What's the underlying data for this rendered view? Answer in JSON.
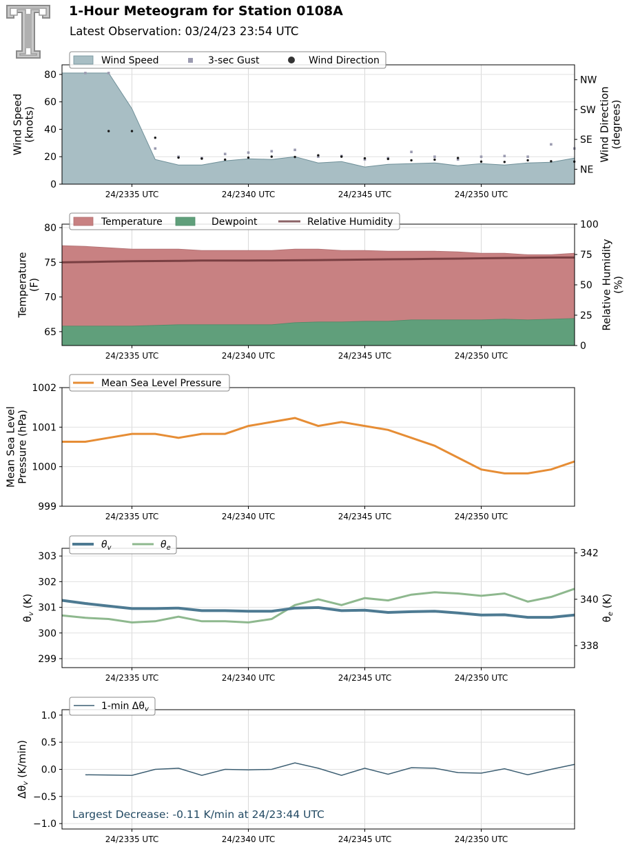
{
  "header": {
    "title": "1-Hour Meteogram for Station 0108A",
    "subtitle": "Latest Observation: 03/24/23 23:54 UTC",
    "logo": "texas-tech-double-t-logo"
  },
  "colors": {
    "wind_fill": "#a8bec4",
    "wind_edge": "#6e8f98",
    "gust": "#9b9bb0",
    "wdir": "#1a1a1a",
    "temperature": "#c88182",
    "dewpoint": "#609f7b",
    "rh": "#6b3437",
    "mslp": "#e68d35",
    "theta_v": "#4d7a92",
    "theta_e": "#8eb88e",
    "delta": "#3c5e72",
    "annotation": "#234a63"
  },
  "chart_data": [
    {
      "type": "area",
      "name": "wind",
      "x_tick_labels": [
        "24/2335 UTC",
        "24/2340 UTC",
        "24/2345 UTC",
        "24/2350 UTC"
      ],
      "x_minutes": [
        32,
        33,
        34,
        35,
        36,
        37,
        38,
        39,
        40,
        41,
        42,
        43,
        44,
        45,
        46,
        47,
        48,
        49,
        50,
        51,
        52,
        53,
        54
      ],
      "ylabel": "Wind Speed\n(knots)",
      "y2label": "Wind Direction\n(degrees)",
      "ylim": [
        0,
        87
      ],
      "yticks": [
        0,
        20,
        40,
        60,
        80
      ],
      "y2_tick_labels": [
        "NE",
        "SE",
        "SW",
        "NW"
      ],
      "y2_tick_values": [
        45,
        135,
        225,
        315
      ],
      "y2lim": [
        0,
        360
      ],
      "legend": [
        "Wind Speed",
        "3-sec Gust",
        "Wind Direction"
      ],
      "series": [
        {
          "name": "Wind Speed",
          "values": [
            81,
            81,
            81,
            55,
            18,
            14,
            14,
            17,
            18.5,
            18,
            20,
            15.5,
            16.5,
            12.5,
            14.5,
            15,
            15.5,
            13.5,
            15,
            14,
            15.5,
            16,
            19
          ]
        },
        {
          "name": "3-sec Gust",
          "values": [
            null,
            81,
            81,
            null,
            26,
            20,
            19,
            22,
            23,
            24,
            25,
            20,
            20.5,
            18,
            19,
            23.5,
            20,
            18,
            20,
            20.5,
            20,
            29,
            26
          ]
        },
        {
          "name": "Wind Direction",
          "values": [
            null,
            null,
            160,
            160,
            140,
            80,
            77,
            74,
            80,
            83,
            82,
            87,
            83,
            78,
            76,
            72,
            74,
            79,
            68,
            67,
            72,
            69,
            68
          ]
        }
      ],
      "grid": true,
      "legend_position": "top-left"
    },
    {
      "type": "area",
      "name": "temperature",
      "x_tick_labels": [
        "24/2335 UTC",
        "24/2340 UTC",
        "24/2345 UTC",
        "24/2350 UTC"
      ],
      "x_minutes": [
        32,
        33,
        34,
        35,
        36,
        37,
        38,
        39,
        40,
        41,
        42,
        43,
        44,
        45,
        46,
        47,
        48,
        49,
        50,
        51,
        52,
        53,
        54
      ],
      "ylabel": "Temperature\n(F)",
      "y2label": "Relative Humidity\n(%)",
      "ylim": [
        63,
        80.5
      ],
      "yticks": [
        65,
        70,
        75,
        80
      ],
      "y2lim": [
        0,
        100
      ],
      "y2ticks": [
        0,
        25,
        50,
        75,
        100
      ],
      "legend": [
        "Temperature",
        "Dewpoint",
        "Relative Humidity"
      ],
      "series": [
        {
          "name": "Temperature",
          "values": [
            77.4,
            77.3,
            77.1,
            76.9,
            76.9,
            76.9,
            76.7,
            76.7,
            76.7,
            76.7,
            76.9,
            76.9,
            76.7,
            76.7,
            76.6,
            76.6,
            76.6,
            76.5,
            76.3,
            76.3,
            76.1,
            76.1,
            76.3
          ]
        },
        {
          "name": "Dewpoint",
          "values": [
            65.8,
            65.8,
            65.8,
            65.8,
            65.9,
            66.0,
            66.0,
            66.0,
            66.0,
            66.0,
            66.3,
            66.4,
            66.4,
            66.5,
            66.5,
            66.7,
            66.7,
            66.7,
            66.7,
            66.8,
            66.7,
            66.8,
            66.9
          ]
        },
        {
          "name": "Relative Humidity",
          "values": [
            68.5,
            68.8,
            69.2,
            69.5,
            69.6,
            69.8,
            70.0,
            70.0,
            70.0,
            70.1,
            70.2,
            70.4,
            70.6,
            70.8,
            71.0,
            71.2,
            71.4,
            71.6,
            71.9,
            72.1,
            72.3,
            72.5,
            72.5
          ]
        }
      ],
      "grid": true,
      "legend_position": "top-left"
    },
    {
      "type": "line",
      "name": "pressure",
      "x_tick_labels": [
        "24/2335 UTC",
        "24/2340 UTC",
        "24/2345 UTC",
        "24/2350 UTC"
      ],
      "x_minutes": [
        32,
        33,
        34,
        35,
        36,
        37,
        38,
        39,
        40,
        41,
        42,
        43,
        44,
        45,
        46,
        47,
        48,
        49,
        50,
        51,
        52,
        53,
        54
      ],
      "ylabel": "Mean Sea Level\nPressure (hPa)",
      "ylim": [
        999,
        1002
      ],
      "yticks": [
        999,
        1000,
        1001,
        1002
      ],
      "legend": [
        "Mean Sea Level Pressure"
      ],
      "series": [
        {
          "name": "Mean Sea Level Pressure",
          "values": [
            1000.63,
            1000.63,
            1000.73,
            1000.83,
            1000.83,
            1000.73,
            1000.83,
            1000.83,
            1001.03,
            1001.13,
            1001.23,
            1001.03,
            1001.13,
            1001.03,
            1000.93,
            1000.73,
            1000.53,
            1000.23,
            999.93,
            999.83,
            999.83,
            999.93,
            1000.13
          ]
        }
      ],
      "grid": true,
      "legend_position": "top-left"
    },
    {
      "type": "line",
      "name": "theta",
      "x_tick_labels": [
        "24/2335 UTC",
        "24/2340 UTC",
        "24/2345 UTC",
        "24/2350 UTC"
      ],
      "x_minutes": [
        32,
        33,
        34,
        35,
        36,
        37,
        38,
        39,
        40,
        41,
        42,
        43,
        44,
        45,
        46,
        47,
        48,
        49,
        50,
        51,
        52,
        53,
        54
      ],
      "ylabel": "θv (K)",
      "y2label": "θe (K)",
      "ylim": [
        298.65,
        303.3
      ],
      "yticks": [
        299,
        300,
        301,
        302,
        303
      ],
      "y2lim": [
        337.05,
        342.2
      ],
      "y2ticks": [
        338,
        340,
        342
      ],
      "legend": [
        "θv",
        "θe"
      ],
      "series": [
        {
          "name": "θv",
          "values": [
            301.27,
            301.15,
            301.05,
            300.95,
            300.95,
            300.97,
            300.87,
            300.87,
            300.85,
            300.85,
            300.97,
            300.99,
            300.87,
            300.89,
            300.8,
            300.83,
            300.85,
            300.78,
            300.7,
            300.71,
            300.61,
            300.61,
            300.7
          ]
        },
        {
          "name": "θe",
          "values": [
            339.3,
            339.2,
            339.15,
            339.0,
            339.05,
            339.25,
            339.05,
            339.05,
            339.0,
            339.15,
            339.75,
            340.0,
            339.75,
            340.05,
            339.95,
            340.2,
            340.3,
            340.25,
            340.15,
            340.25,
            339.9,
            340.1,
            340.45
          ]
        }
      ],
      "grid": true,
      "legend_position": "top-left"
    },
    {
      "type": "line",
      "name": "delta-theta",
      "x_tick_labels": [
        "24/2335 UTC",
        "24/2340 UTC",
        "24/2345 UTC",
        "24/2350 UTC"
      ],
      "x_minutes": [
        33,
        34,
        35,
        36,
        37,
        38,
        39,
        40,
        41,
        42,
        43,
        44,
        45,
        46,
        47,
        48,
        49,
        50,
        51,
        52,
        53,
        54
      ],
      "ylabel": "Δθv (K/min)",
      "ylim": [
        -1.1,
        1.1
      ],
      "yticks": [
        -1.0,
        -0.5,
        0.0,
        0.5,
        1.0
      ],
      "ytick_labels": [
        "−1.0",
        "−0.5",
        "0.0",
        "0.5",
        "1.0"
      ],
      "legend": [
        "1-min Δθv"
      ],
      "annotation": "Largest Decrease: -0.11 K/min at 24/23:44 UTC",
      "series": [
        {
          "name": "1-min Δθv",
          "values": [
            -0.1,
            -0.105,
            -0.11,
            0.0,
            0.02,
            -0.11,
            0.0,
            -0.01,
            0.0,
            0.12,
            0.02,
            -0.11,
            0.02,
            -0.09,
            0.03,
            0.02,
            -0.06,
            -0.07,
            0.01,
            -0.1,
            0.0,
            0.09
          ]
        }
      ],
      "grid": true,
      "legend_position": "top-left"
    }
  ]
}
